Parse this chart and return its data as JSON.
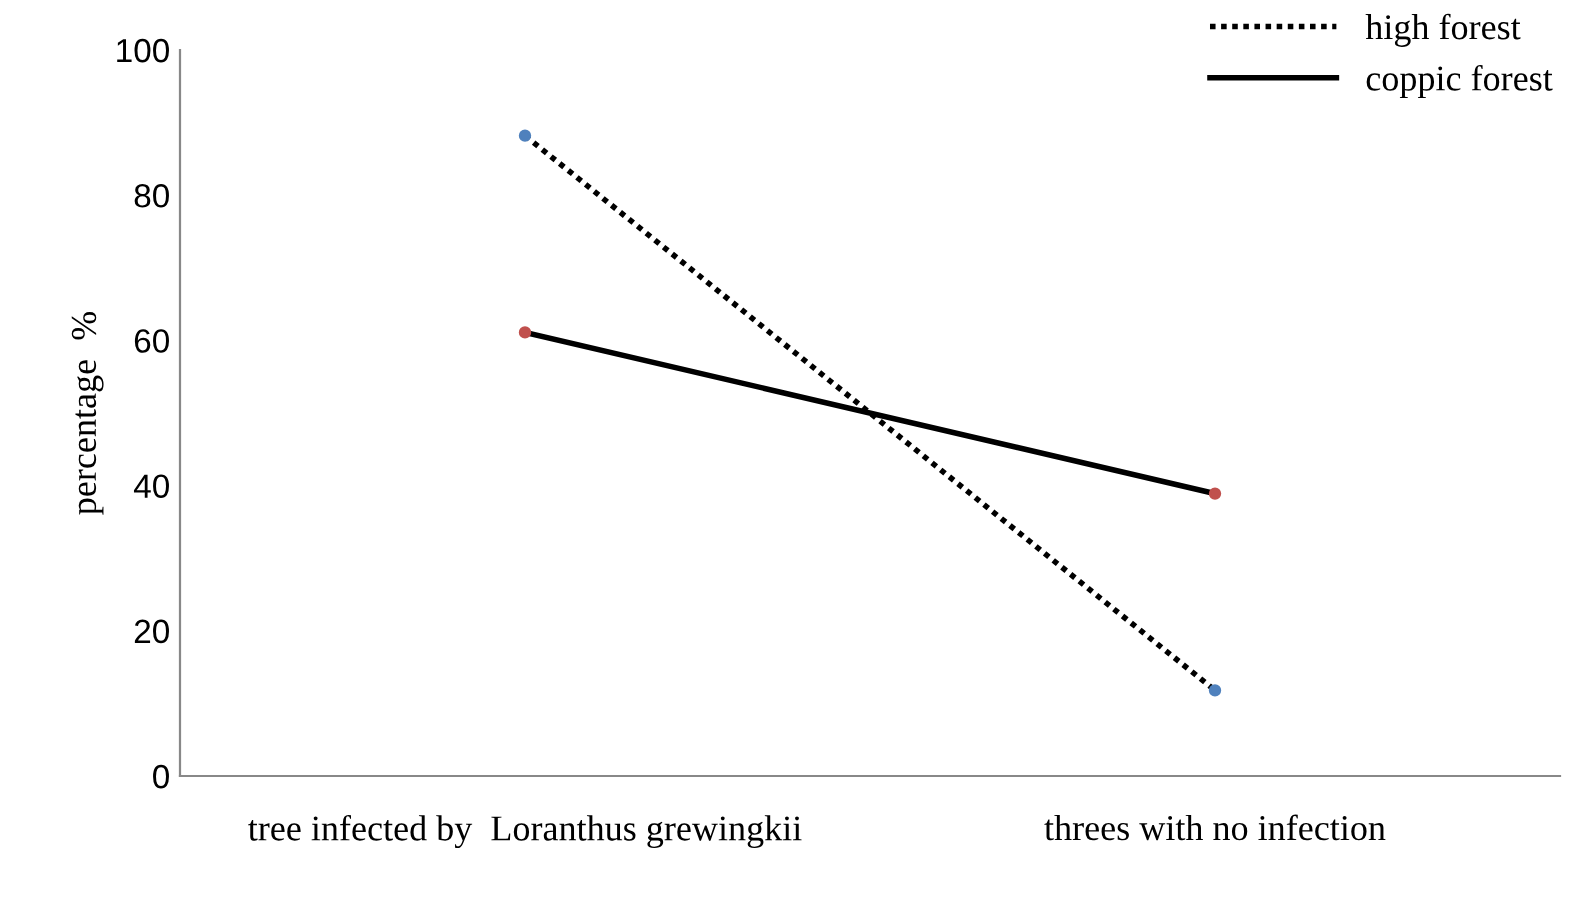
{
  "chart_data": {
    "type": "line",
    "ylabel": "percentage  %",
    "categories": [
      "tree infected by  Loranthus grewingkii",
      "threes with no infection"
    ],
    "series": [
      {
        "name": "high forest",
        "color": "#000000",
        "colors": [
          "#4f81bd",
          "#4f81bd"
        ],
        "line_style": "dotted",
        "values": [
          88.2,
          11.8
        ]
      },
      {
        "name": "coppic forest",
        "color": "#000000",
        "colors": [
          "#c0504d",
          "#c0504d"
        ],
        "line_style": "solid",
        "values": [
          61.1,
          38.9
        ]
      }
    ],
    "ylim": [
      0,
      100
    ],
    "yticks": [
      0,
      20,
      40,
      60,
      80,
      100
    ],
    "marker": "circle",
    "grid": false,
    "legend": "top right"
  }
}
